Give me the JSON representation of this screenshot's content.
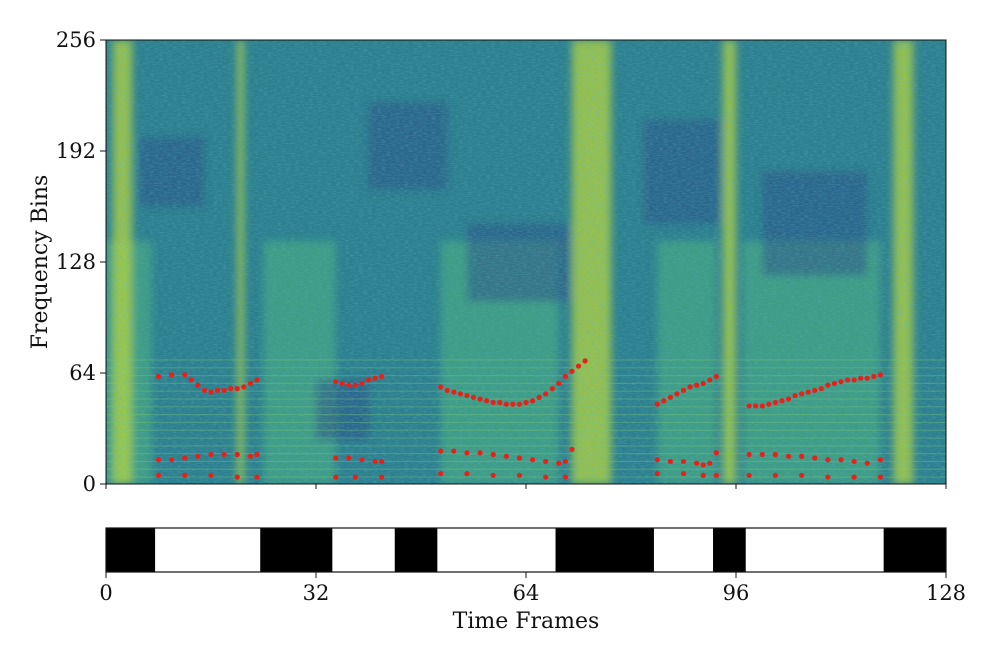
{
  "chart_data": [
    {
      "type": "heatmap",
      "title": "",
      "xlabel": "",
      "ylabel": "Frequency Bins",
      "xlim": [
        0,
        128
      ],
      "ylim": [
        0,
        256
      ],
      "x_ticks": [],
      "y_ticks": [
        "0",
        "64",
        "128",
        "192",
        "256"
      ],
      "colormap": "viridis",
      "voiced_bands_frames": [
        [
          0,
          7
        ],
        [
          24,
          35
        ],
        [
          51,
          69
        ],
        [
          84,
          93
        ],
        [
          97,
          118
        ]
      ],
      "bright_columns_frames": [
        [
          1,
          4
        ],
        [
          20,
          21
        ],
        [
          71,
          77
        ],
        [
          94,
          96
        ],
        [
          120,
          123
        ]
      ],
      "series": [
        {
          "color": "#e8201a",
          "points": [
            [
              8,
              62
            ],
            [
              10,
              63
            ],
            [
              12,
              63
            ],
            [
              13,
              60
            ],
            [
              14,
              57
            ],
            [
              15,
              54
            ],
            [
              16,
              53
            ],
            [
              17,
              54
            ],
            [
              18,
              54
            ],
            [
              19,
              55
            ],
            [
              20,
              55
            ],
            [
              21,
              56
            ],
            [
              22,
              58
            ],
            [
              23,
              60
            ],
            [
              35,
              59
            ],
            [
              36,
              58
            ],
            [
              37,
              57
            ],
            [
              38,
              57
            ],
            [
              39,
              58
            ],
            [
              40,
              60
            ],
            [
              41,
              61
            ],
            [
              42,
              62
            ],
            [
              51,
              56
            ],
            [
              52,
              54
            ],
            [
              53,
              53
            ],
            [
              54,
              52
            ],
            [
              55,
              51
            ],
            [
              56,
              50
            ],
            [
              57,
              49
            ],
            [
              58,
              48
            ],
            [
              59,
              47
            ],
            [
              60,
              47
            ],
            [
              61,
              46
            ],
            [
              62,
              46
            ],
            [
              63,
              46
            ],
            [
              64,
              47
            ],
            [
              65,
              48
            ],
            [
              66,
              50
            ],
            [
              67,
              52
            ],
            [
              68,
              55
            ],
            [
              69,
              58
            ],
            [
              70,
              62
            ],
            [
              71,
              65
            ],
            [
              72,
              68
            ],
            [
              73,
              71
            ],
            [
              84,
              46
            ],
            [
              85,
              48
            ],
            [
              86,
              50
            ],
            [
              87,
              52
            ],
            [
              88,
              54
            ],
            [
              89,
              56
            ],
            [
              90,
              57
            ],
            [
              91,
              58
            ],
            [
              92,
              60
            ],
            [
              93,
              62
            ],
            [
              98,
              45
            ],
            [
              99,
              45
            ],
            [
              100,
              45
            ],
            [
              101,
              46
            ],
            [
              102,
              47
            ],
            [
              103,
              48
            ],
            [
              104,
              49
            ],
            [
              105,
              51
            ],
            [
              106,
              52
            ],
            [
              107,
              53
            ],
            [
              108,
              54
            ],
            [
              109,
              55
            ],
            [
              110,
              57
            ],
            [
              111,
              58
            ],
            [
              112,
              59
            ],
            [
              113,
              60
            ],
            [
              114,
              60
            ],
            [
              115,
              61
            ],
            [
              116,
              61
            ],
            [
              117,
              62
            ],
            [
              118,
              63
            ]
          ]
        },
        {
          "color": "#e8201a",
          "points": [
            [
              8,
              14
            ],
            [
              10,
              14
            ],
            [
              12,
              15
            ],
            [
              14,
              16
            ],
            [
              16,
              17
            ],
            [
              18,
              17
            ],
            [
              20,
              17
            ],
            [
              22,
              16
            ],
            [
              23,
              17
            ],
            [
              35,
              15
            ],
            [
              37,
              15
            ],
            [
              39,
              14
            ],
            [
              41,
              13
            ],
            [
              42,
              13
            ],
            [
              51,
              19
            ],
            [
              53,
              19
            ],
            [
              55,
              18
            ],
            [
              57,
              18
            ],
            [
              59,
              17
            ],
            [
              61,
              16
            ],
            [
              63,
              15
            ],
            [
              65,
              14
            ],
            [
              67,
              13
            ],
            [
              69,
              12
            ],
            [
              70,
              13
            ],
            [
              71,
              20
            ],
            [
              84,
              14
            ],
            [
              86,
              13
            ],
            [
              88,
              13
            ],
            [
              90,
              12
            ],
            [
              91,
              11
            ],
            [
              92,
              12
            ],
            [
              93,
              18
            ],
            [
              98,
              17
            ],
            [
              100,
              17
            ],
            [
              102,
              17
            ],
            [
              104,
              16
            ],
            [
              106,
              16
            ],
            [
              108,
              15
            ],
            [
              110,
              14
            ],
            [
              112,
              14
            ],
            [
              114,
              13
            ],
            [
              116,
              12
            ],
            [
              118,
              14
            ]
          ]
        },
        {
          "color": "#e8201a",
          "points": [
            [
              8,
              5
            ],
            [
              12,
              5
            ],
            [
              16,
              5
            ],
            [
              20,
              4
            ],
            [
              23,
              4
            ],
            [
              35,
              4
            ],
            [
              38,
              4
            ],
            [
              42,
              4
            ],
            [
              51,
              6
            ],
            [
              55,
              6
            ],
            [
              59,
              5
            ],
            [
              63,
              5
            ],
            [
              67,
              4
            ],
            [
              70,
              4
            ],
            [
              84,
              6
            ],
            [
              88,
              6
            ],
            [
              91,
              5
            ],
            [
              93,
              5
            ],
            [
              98,
              5
            ],
            [
              102,
              5
            ],
            [
              106,
              5
            ],
            [
              110,
              4
            ],
            [
              114,
              4
            ],
            [
              118,
              4
            ]
          ]
        }
      ]
    },
    {
      "type": "bar",
      "title": "",
      "xlabel": "Time Frames",
      "ylabel": "",
      "xlim": [
        0,
        128
      ],
      "x_ticks": [
        "0",
        "32",
        "64",
        "96",
        "128"
      ],
      "description_values": "binary voiced mask per frame (1 = black segment)",
      "segments": [
        {
          "start": 0,
          "end": 7.5,
          "value": 1
        },
        {
          "start": 7.5,
          "end": 23.5,
          "value": 0
        },
        {
          "start": 23.5,
          "end": 34.5,
          "value": 1
        },
        {
          "start": 34.5,
          "end": 44,
          "value": 0
        },
        {
          "start": 44,
          "end": 50.5,
          "value": 1
        },
        {
          "start": 50.5,
          "end": 68.5,
          "value": 0
        },
        {
          "start": 68.5,
          "end": 83.5,
          "value": 1
        },
        {
          "start": 83.5,
          "end": 92.5,
          "value": 0
        },
        {
          "start": 92.5,
          "end": 97.5,
          "value": 1
        },
        {
          "start": 97.5,
          "end": 118.5,
          "value": 0
        },
        {
          "start": 118.5,
          "end": 128,
          "value": 1
        }
      ]
    }
  ]
}
